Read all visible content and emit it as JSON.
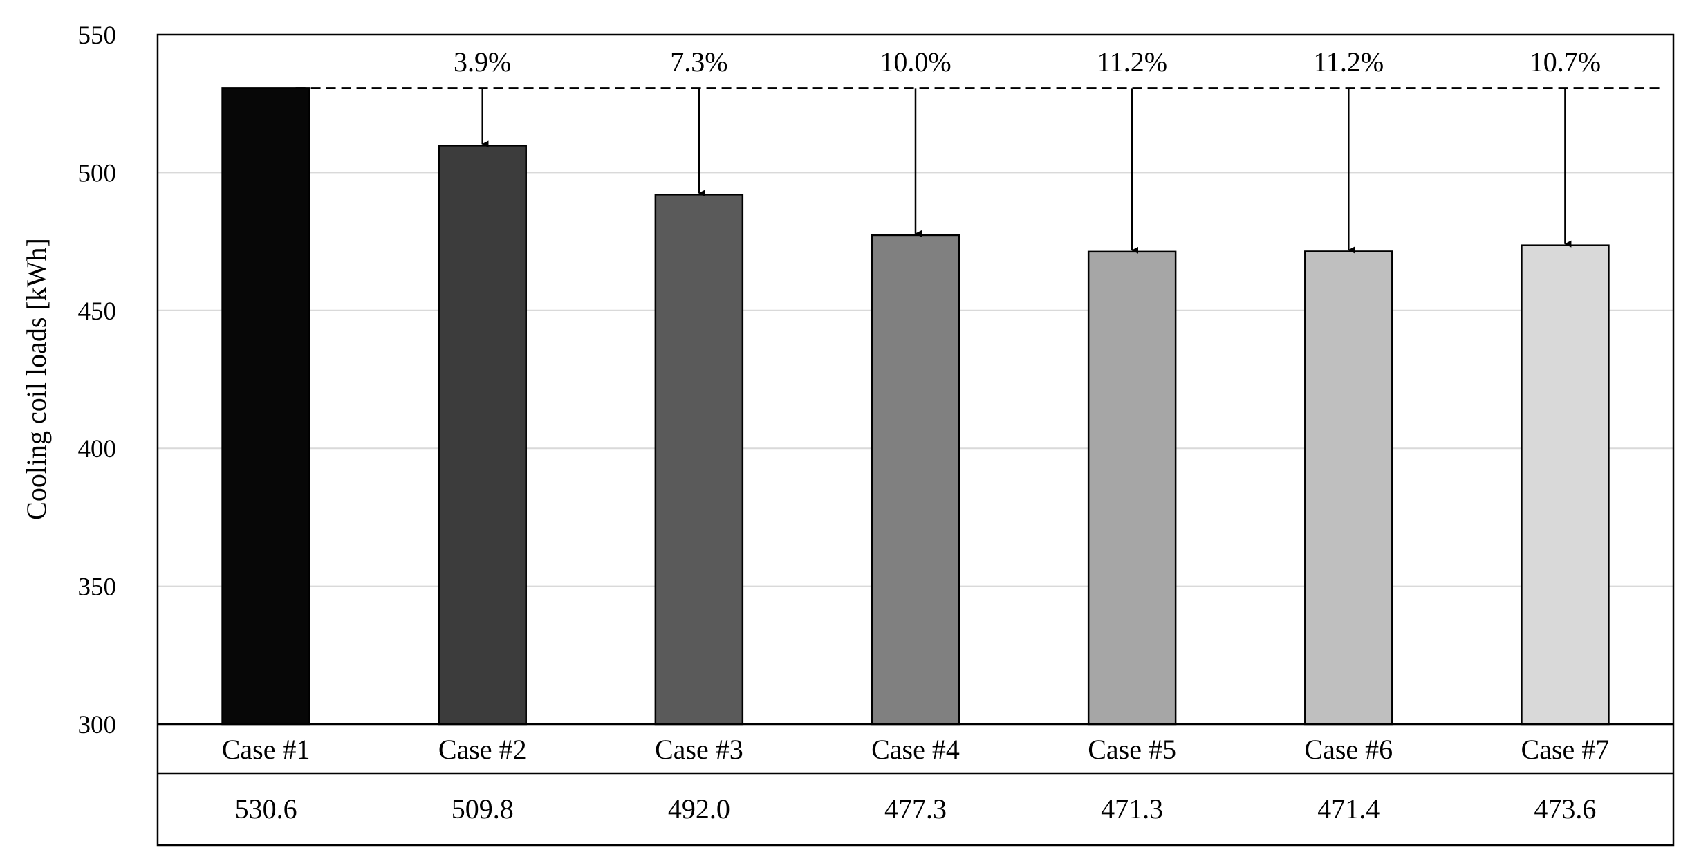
{
  "chart_data": {
    "type": "bar",
    "title": "",
    "xlabel": "",
    "ylabel": "Cooling coil loads [kWh]",
    "ylim": [
      300,
      550
    ],
    "yticks": [
      300,
      350,
      400,
      450,
      500,
      550
    ],
    "grid": true,
    "categories": [
      "Case #1",
      "Case #2",
      "Case #3",
      "Case #4",
      "Case #5",
      "Case #6",
      "Case #7"
    ],
    "values": [
      530.6,
      509.8,
      492.0,
      477.3,
      471.3,
      471.4,
      473.6
    ],
    "value_labels": [
      "530.6",
      "509.8",
      "492.0",
      "477.3",
      "471.3",
      "471.4",
      "473.6"
    ],
    "reduction_labels": [
      "",
      "3.9%",
      "7.3%",
      "10.0%",
      "11.2%",
      "11.2%",
      "10.7%"
    ],
    "bar_colors": [
      "#070707",
      "#3c3c3c",
      "#5a5a5a",
      "#808080",
      "#a6a6a6",
      "#bfbfbf",
      "#d9d9d9"
    ],
    "gridline_color": "#d9d9d9",
    "reference_line": "dashed line at Case #1 value with arrows down to each bar"
  }
}
